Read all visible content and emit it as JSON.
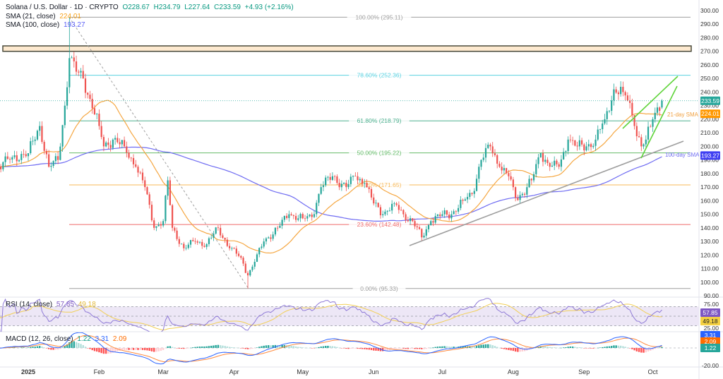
{
  "header": {
    "symbol": "Solana / U.S. Dollar · 1D · CRYPTO",
    "open": "O228.67",
    "high": "H234.79",
    "low": "L227.64",
    "close": "C233.59",
    "change": "+4.93 (+2.16%)",
    "sma21_label": "SMA (21, close)",
    "sma21_value": "224.01",
    "sma100_label": "SMA (100, close)",
    "sma100_value": "193.27"
  },
  "rsi_legend": {
    "label": "RSI (14, close)",
    "rsi": "57.85",
    "ma": "49.18"
  },
  "macd_legend": {
    "label": "MACD (12, 26, close)",
    "hist": "1.22",
    "macd": "3.31",
    "signal": "2.09"
  },
  "colors": {
    "up": "#26a69a",
    "down": "#ef5350",
    "sma21": "#f5a742",
    "sma100": "#6f6cf2",
    "rsi": "#8e79d6",
    "rsi_ma": "#f2cf55",
    "macd": "#2962ff",
    "signal": "#ff8a3d"
  },
  "chart_data": {
    "type": "candlestick",
    "title": "Solana / U.S. Dollar · 1D · CRYPTO",
    "ylim": [
      90,
      300
    ],
    "y_ticks": [
      "300.00",
      "290.00",
      "280.00",
      "270.00",
      "260.00",
      "250.00",
      "240.00",
      "230.00",
      "220.00",
      "210.00",
      "200.00",
      "190.00",
      "180.00",
      "170.00",
      "160.00",
      "150.00",
      "140.00",
      "130.00",
      "120.00",
      "110.00",
      "100.00",
      "90.00"
    ],
    "x_ticks": [
      {
        "label": "2025",
        "date": "2025-01-01"
      },
      {
        "label": "Feb",
        "date": "2025-02-01"
      },
      {
        "label": "Mar",
        "date": "2025-03-01"
      },
      {
        "label": "Apr",
        "date": "2025-04-01"
      },
      {
        "label": "May",
        "date": "2025-05-01"
      },
      {
        "label": "Jun",
        "date": "2025-06-01"
      },
      {
        "label": "Jul",
        "date": "2025-07-01"
      },
      {
        "label": "Aug",
        "date": "2025-08-01"
      },
      {
        "label": "Sep",
        "date": "2025-09-01"
      },
      {
        "label": "Oct",
        "date": "2025-10-01"
      }
    ],
    "close_anchors": [
      [
        "2024-12-19",
        185
      ],
      [
        "2024-12-25",
        192
      ],
      [
        "2025-01-01",
        195
      ],
      [
        "2025-01-06",
        215
      ],
      [
        "2025-01-10",
        185
      ],
      [
        "2025-01-14",
        190
      ],
      [
        "2025-01-17",
        230
      ],
      [
        "2025-01-19",
        265
      ],
      [
        "2025-01-22",
        255
      ],
      [
        "2025-01-25",
        250
      ],
      [
        "2025-01-28",
        235
      ],
      [
        "2025-02-01",
        215
      ],
      [
        "2025-02-03",
        200
      ],
      [
        "2025-02-07",
        205
      ],
      [
        "2025-02-12",
        200
      ],
      [
        "2025-02-17",
        185
      ],
      [
        "2025-02-21",
        170
      ],
      [
        "2025-02-25",
        140
      ],
      [
        "2025-03-01",
        145
      ],
      [
        "2025-03-03",
        175
      ],
      [
        "2025-03-05",
        140
      ],
      [
        "2025-03-10",
        125
      ],
      [
        "2025-03-15",
        130
      ],
      [
        "2025-03-20",
        128
      ],
      [
        "2025-03-25",
        140
      ],
      [
        "2025-03-30",
        125
      ],
      [
        "2025-04-04",
        118
      ],
      [
        "2025-04-07",
        105
      ],
      [
        "2025-04-10",
        115
      ],
      [
        "2025-04-14",
        130
      ],
      [
        "2025-04-20",
        140
      ],
      [
        "2025-04-25",
        150
      ],
      [
        "2025-05-01",
        147
      ],
      [
        "2025-05-05",
        148
      ],
      [
        "2025-05-09",
        170
      ],
      [
        "2025-05-14",
        178
      ],
      [
        "2025-05-20",
        170
      ],
      [
        "2025-05-24",
        178
      ],
      [
        "2025-05-28",
        173
      ],
      [
        "2025-06-01",
        158
      ],
      [
        "2025-06-05",
        150
      ],
      [
        "2025-06-10",
        158
      ],
      [
        "2025-06-14",
        150
      ],
      [
        "2025-06-18",
        145
      ],
      [
        "2025-06-22",
        133
      ],
      [
        "2025-06-26",
        145
      ],
      [
        "2025-07-01",
        150
      ],
      [
        "2025-07-05",
        150
      ],
      [
        "2025-07-10",
        160
      ],
      [
        "2025-07-14",
        165
      ],
      [
        "2025-07-18",
        190
      ],
      [
        "2025-07-22",
        200
      ],
      [
        "2025-07-26",
        185
      ],
      [
        "2025-07-30",
        178
      ],
      [
        "2025-08-02",
        162
      ],
      [
        "2025-08-05",
        165
      ],
      [
        "2025-08-09",
        175
      ],
      [
        "2025-08-13",
        195
      ],
      [
        "2025-08-17",
        185
      ],
      [
        "2025-08-21",
        185
      ],
      [
        "2025-08-25",
        205
      ],
      [
        "2025-08-29",
        200
      ],
      [
        "2025-09-02",
        200
      ],
      [
        "2025-09-06",
        205
      ],
      [
        "2025-09-10",
        220
      ],
      [
        "2025-09-14",
        242
      ],
      [
        "2025-09-18",
        240
      ],
      [
        "2025-09-21",
        232
      ],
      [
        "2025-09-23",
        215
      ],
      [
        "2025-09-26",
        200
      ],
      [
        "2025-09-28",
        205
      ],
      [
        "2025-10-01",
        220
      ],
      [
        "2025-10-03",
        228.67
      ],
      [
        "2025-10-05",
        233.59
      ]
    ],
    "wicks": [
      {
        "date": "2025-01-19",
        "high": 295.11
      },
      {
        "date": "2025-04-07",
        "low": 95.33
      }
    ],
    "last_candle": {
      "open": 228.67,
      "high": 234.79,
      "low": 227.64,
      "close": 233.59
    },
    "fib_levels": [
      {
        "label": "100.00% (295.11)",
        "value": 295.11,
        "color": "#9e9e9e"
      },
      {
        "label": "78.60% (252.36)",
        "value": 252.36,
        "color": "#5ad1e0"
      },
      {
        "label": "61.80% (218.79)",
        "value": 218.79,
        "color": "#4caf8e"
      },
      {
        "label": "50.00% (195.22)",
        "value": 195.22,
        "color": "#66bb6a"
      },
      {
        "label": "38.20% (171.65)",
        "value": 171.65,
        "color": "#f7b95a"
      },
      {
        "label": "23.60% (142.48)",
        "value": 142.48,
        "color": "#ef6b6b"
      },
      {
        "label": "0.00% (95.33)",
        "value": 95.33,
        "color": "#9e9e9e"
      }
    ],
    "resistance_zone": [
      270,
      274
    ],
    "annotations": {
      "sma21": "21-day SMA",
      "sma100": "100-day SMA"
    },
    "price_badges": {
      "close": "233.59",
      "sma21": "224.01",
      "sma100": "193.27"
    },
    "rsi": {
      "ticks": [
        "75.00",
        "25.00"
      ],
      "badges": {
        "rsi": "57.85",
        "ma": "49.18"
      }
    },
    "macd": {
      "ticks": [
        "-20.00"
      ],
      "badges": {
        "macd": "3.31",
        "signal": "2.09",
        "hist": "1.22"
      }
    }
  }
}
